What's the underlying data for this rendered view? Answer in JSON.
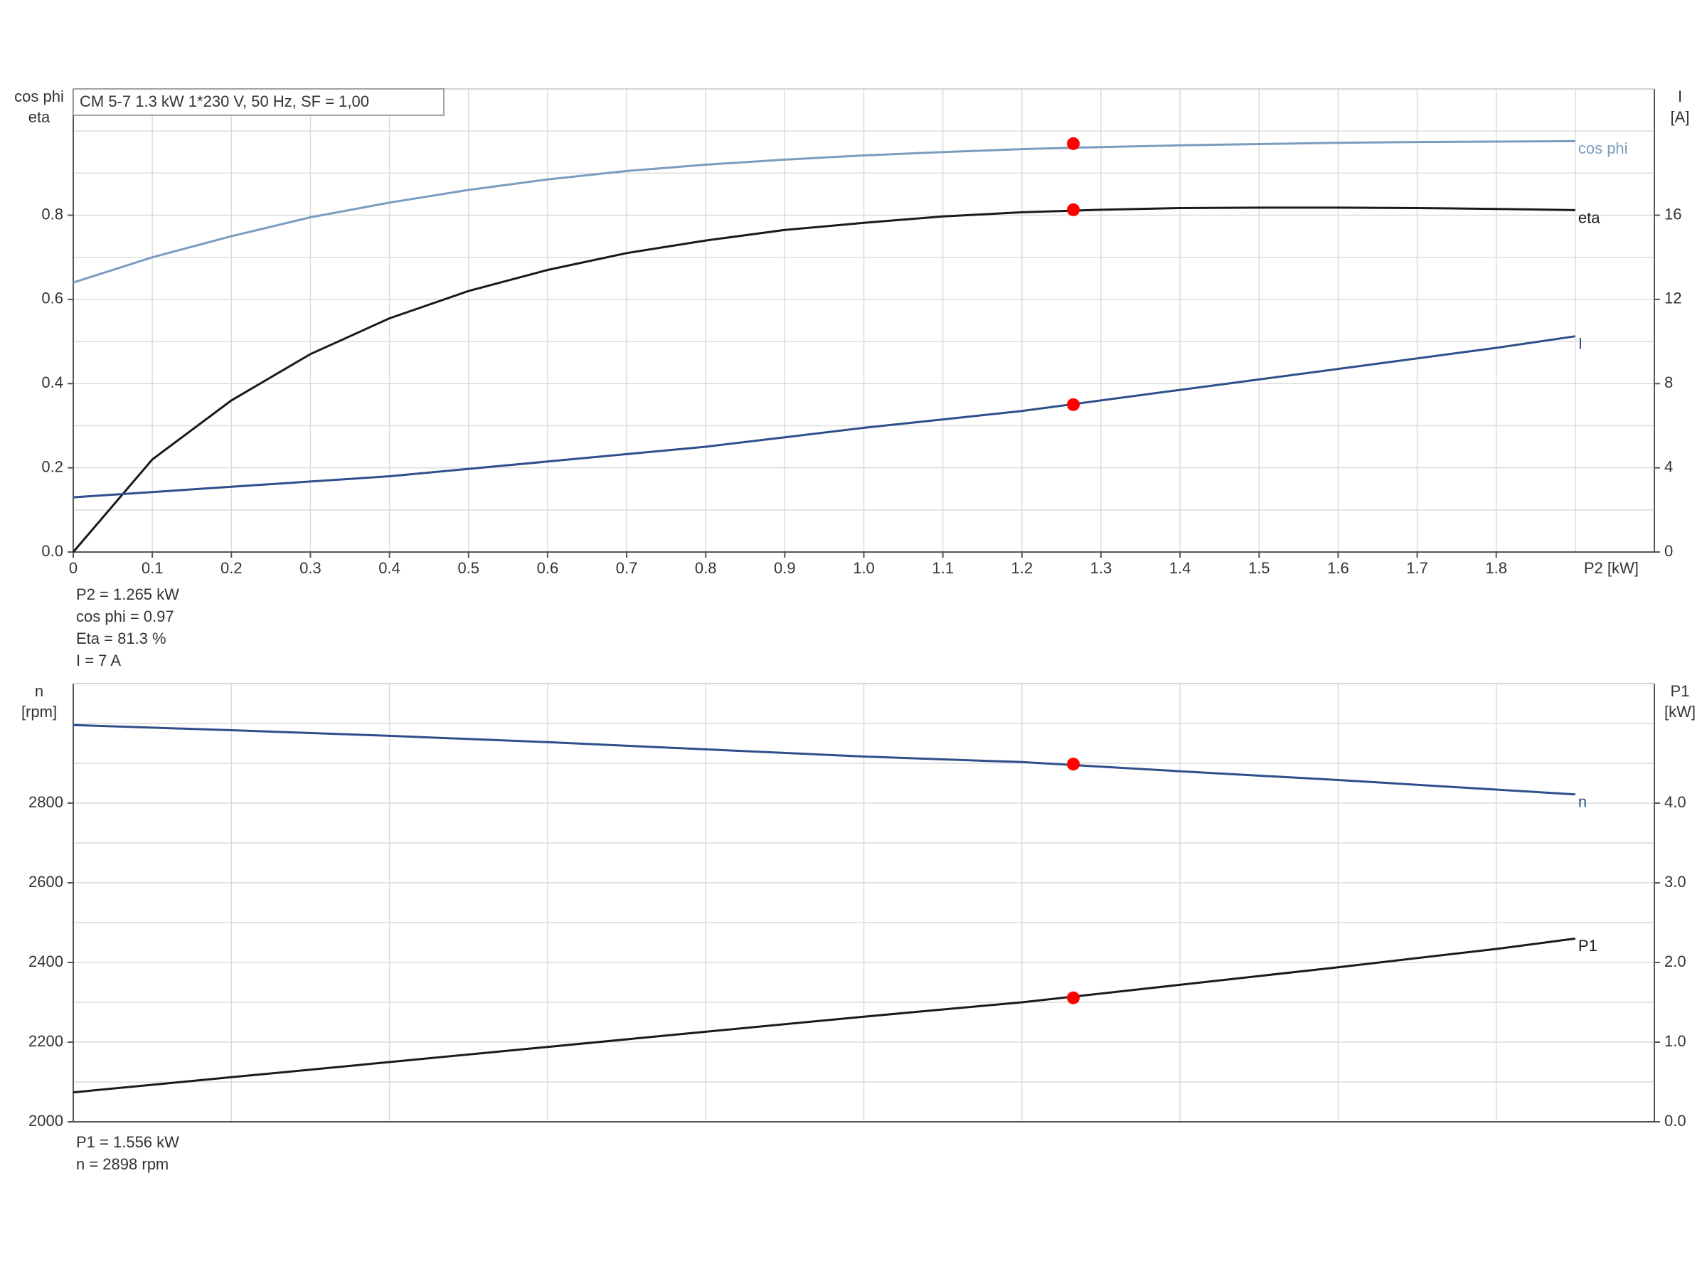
{
  "chart_data": [
    {
      "type": "line",
      "header": "CM 5-7   1.3 kW   1*230 V, 50 Hz, SF = 1,00",
      "y_label": [
        "cos phi",
        "eta"
      ],
      "y2_label": [
        "I",
        "[A]"
      ],
      "x_label": "P2 [kW]",
      "xlim": [
        0,
        2.0
      ],
      "xticks": [
        {
          "value": 0,
          "label": "0"
        },
        0.1,
        0.2,
        0.3,
        0.4,
        0.5,
        0.6,
        0.7,
        0.8,
        0.9,
        {
          "value": 1,
          "label": "1.0"
        },
        1.1,
        1.2,
        1.3,
        1.4,
        1.5,
        1.6,
        1.7,
        1.8
      ],
      "xgrid": [
        0,
        0.1,
        0.2,
        0.3,
        0.4,
        0.5,
        0.6,
        0.7,
        0.8,
        0.9,
        1.0,
        1.1,
        1.2,
        1.3,
        1.4,
        1.5,
        1.6,
        1.7,
        1.8,
        1.9
      ],
      "ylim": [
        0,
        1.1
      ],
      "yticks": [
        {
          "value": 0,
          "label": "0.0"
        },
        0.2,
        0.4,
        0.6,
        0.8
      ],
      "ygrid": [
        0,
        0.1,
        0.2,
        0.3,
        0.4,
        0.5,
        0.6,
        0.7,
        0.8,
        0.9,
        1.0,
        1.1
      ],
      "y2lim": [
        0,
        22
      ],
      "y2ticks": [
        0,
        4,
        8,
        12,
        16
      ],
      "x": [
        0,
        0.1,
        0.2,
        0.3,
        0.4,
        0.5,
        0.6,
        0.7,
        0.8,
        0.9,
        1.0,
        1.1,
        1.2,
        1.3,
        1.4,
        1.5,
        1.6,
        1.7,
        1.8,
        1.9
      ],
      "series": [
        {
          "name": "cos phi",
          "color": "#7a9cc0",
          "axis": "y",
          "operating_value": 0.97,
          "values": [
            0.64,
            0.7,
            0.75,
            0.795,
            0.83,
            0.86,
            0.885,
            0.905,
            0.92,
            0.932,
            0.942,
            0.95,
            0.957,
            0.962,
            0.966,
            0.969,
            0.972,
            0.974,
            0.975,
            0.976
          ]
        },
        {
          "name": "eta",
          "color": "#1a1a1a",
          "axis": "y",
          "operating_value": 0.813,
          "values": [
            0,
            0.22,
            0.36,
            0.47,
            0.555,
            0.62,
            0.67,
            0.71,
            0.74,
            0.765,
            0.782,
            0.797,
            0.807,
            0.813,
            0.817,
            0.818,
            0.818,
            0.817,
            0.815,
            0.812
          ]
        },
        {
          "name": "I",
          "color": "#2e4f8a",
          "axis": "y2",
          "operating_value": 7,
          "values": [
            2.6,
            2.85,
            3.1,
            3.35,
            3.6,
            3.95,
            4.3,
            4.65,
            5.0,
            5.45,
            5.9,
            6.3,
            6.7,
            7.2,
            7.7,
            8.2,
            8.7,
            9.2,
            9.7,
            10.25
          ]
        }
      ],
      "operating_x": 1.265,
      "operating_color": "#ff0000",
      "info": [
        "P2 = 1.265 kW",
        "cos phi = 0.97",
        "Eta = 81.3 %",
        "I = 7 A"
      ]
    },
    {
      "type": "line",
      "y_label": [
        "n",
        "[rpm]"
      ],
      "y2_label": [
        "P1",
        "[kW]"
      ],
      "xlim": [
        0,
        2.0
      ],
      "xgrid": [
        0,
        0.2,
        0.4,
        0.6,
        0.8,
        1.0,
        1.2,
        1.4,
        1.6,
        1.8
      ],
      "ylim": [
        2000,
        3100
      ],
      "yticks": [
        2000,
        2200,
        2400,
        2600,
        2800
      ],
      "ygrid": [
        2000,
        2100,
        2200,
        2300,
        2400,
        2500,
        2600,
        2700,
        2800,
        2900,
        3000,
        3100
      ],
      "y2lim": [
        0,
        5.5
      ],
      "y2ticks": [
        {
          "value": 0,
          "label": "0.0"
        },
        {
          "value": 1,
          "label": "1.0"
        },
        {
          "value": 2,
          "label": "2.0"
        },
        {
          "value": 3,
          "label": "3.0"
        },
        {
          "value": 4,
          "label": "4.0"
        }
      ],
      "x": [
        0,
        0.2,
        0.4,
        0.6,
        0.8,
        1.0,
        1.2,
        1.4,
        1.6,
        1.8,
        1.9
      ],
      "series": [
        {
          "name": "n",
          "color": "#2e4f8a",
          "axis": "y",
          "operating_value": 2898,
          "values": [
            2996,
            2983,
            2969,
            2953,
            2935,
            2917,
            2903,
            2880,
            2858,
            2834,
            2822
          ]
        },
        {
          "name": "P1",
          "color": "#1a1a1a",
          "axis": "y2",
          "operating_value": 1.556,
          "values": [
            0.37,
            0.56,
            0.75,
            0.94,
            1.13,
            1.32,
            1.5,
            1.72,
            1.94,
            2.17,
            2.3
          ]
        }
      ],
      "operating_x": 1.265,
      "operating_color": "#ff0000",
      "info": [
        "P1 = 1.556 kW",
        "n = 2898 rpm"
      ]
    }
  ]
}
